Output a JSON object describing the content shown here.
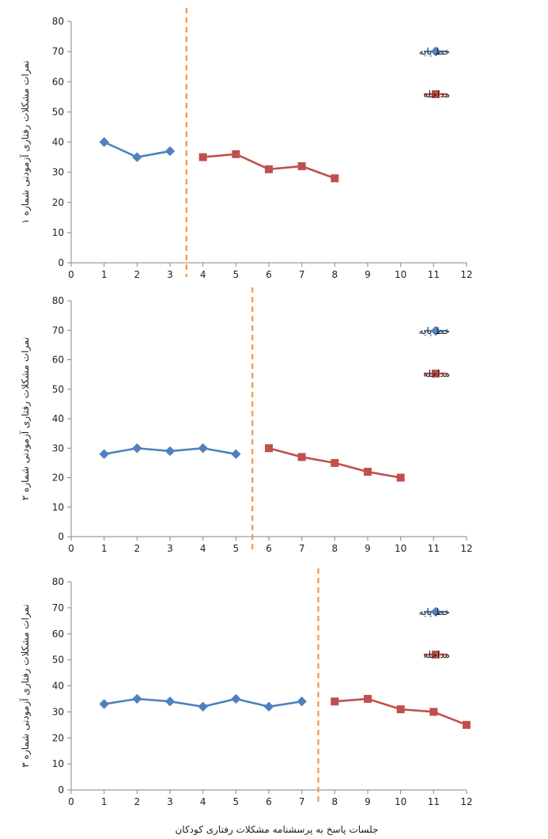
{
  "colors": {
    "baseline": "#4F81BD",
    "intervention": "#C0504D",
    "phase_line": "#F79646",
    "axis": "#868686"
  },
  "x_axis_label": "جلسات پاسخ به پرسشنامه مشکلات رفتاری کودکان",
  "chart_data": [
    {
      "type": "line",
      "ylabel": "نمرات مشکلات رفتاری آزمودنی شماره ۱",
      "xlim": [
        0,
        12
      ],
      "ylim": [
        0,
        80
      ],
      "x_ticks": [
        0,
        1,
        2,
        3,
        4,
        5,
        6,
        7,
        8,
        9,
        10,
        11,
        12
      ],
      "y_ticks": [
        0,
        10,
        20,
        30,
        40,
        50,
        60,
        70,
        80
      ],
      "phase_change_x": 3.5,
      "legend_position": "top-right",
      "series": [
        {
          "name": "خط پایه",
          "marker": "diamond",
          "x": [
            1,
            2,
            3
          ],
          "y": [
            40,
            35,
            37
          ]
        },
        {
          "name": "مداخله",
          "marker": "square",
          "x": [
            4,
            5,
            6,
            7,
            8
          ],
          "y": [
            35,
            36,
            31,
            32,
            28
          ]
        }
      ]
    },
    {
      "type": "line",
      "ylabel": "نمرات مشکلات رفتاری آزمودنی شماره ۲",
      "xlim": [
        0,
        12
      ],
      "ylim": [
        0,
        80
      ],
      "x_ticks": [
        0,
        1,
        2,
        3,
        4,
        5,
        6,
        7,
        8,
        9,
        10,
        11,
        12
      ],
      "y_ticks": [
        0,
        10,
        20,
        30,
        40,
        50,
        60,
        70,
        80
      ],
      "phase_change_x": 5.5,
      "legend_position": "top-right",
      "series": [
        {
          "name": "خط پایه",
          "marker": "diamond",
          "x": [
            1,
            2,
            3,
            4,
            5
          ],
          "y": [
            28,
            30,
            29,
            30,
            28
          ]
        },
        {
          "name": "مداخله",
          "marker": "square",
          "x": [
            6,
            7,
            8,
            9,
            10
          ],
          "y": [
            30,
            27,
            25,
            22,
            20
          ]
        }
      ]
    },
    {
      "type": "line",
      "ylabel": "نمرات مشکلات رفتاری آزمودنی شماره ۳",
      "xlim": [
        0,
        12
      ],
      "ylim": [
        0,
        80
      ],
      "x_ticks": [
        0,
        1,
        2,
        3,
        4,
        5,
        6,
        7,
        8,
        9,
        10,
        11,
        12
      ],
      "y_ticks": [
        0,
        10,
        20,
        30,
        40,
        50,
        60,
        70,
        80
      ],
      "phase_change_x": 7.5,
      "legend_position": "top-right",
      "series": [
        {
          "name": "خط پایه",
          "marker": "diamond",
          "x": [
            1,
            2,
            3,
            4,
            5,
            6,
            7
          ],
          "y": [
            33,
            35,
            34,
            32,
            35,
            32,
            34
          ]
        },
        {
          "name": "مداخله",
          "marker": "square",
          "x": [
            8,
            9,
            10,
            11,
            12
          ],
          "y": [
            34,
            35,
            31,
            30,
            25
          ]
        }
      ]
    }
  ]
}
